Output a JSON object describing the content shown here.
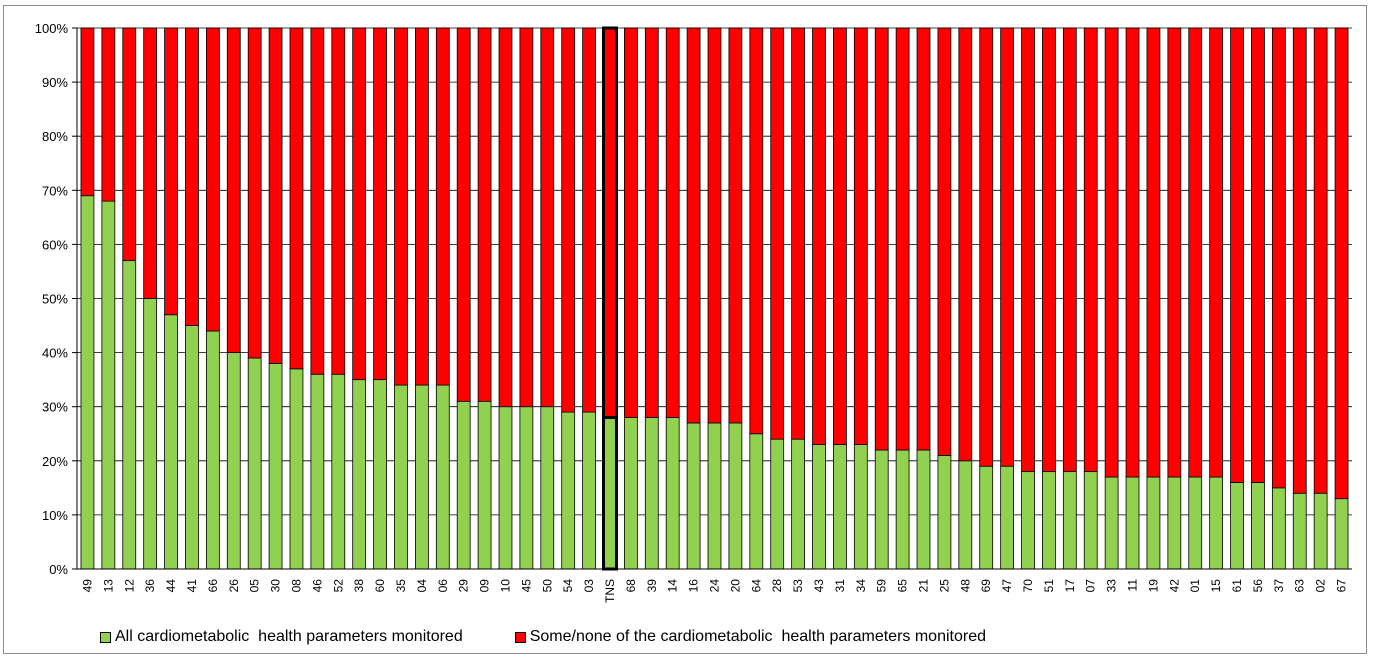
{
  "title_fragment": "",
  "chart_data": {
    "type": "bar",
    "stacked": true,
    "normalized": true,
    "ylim": [
      0,
      100
    ],
    "yticks": [
      "0%",
      "10%",
      "20%",
      "30%",
      "40%",
      "50%",
      "60%",
      "70%",
      "80%",
      "90%",
      "100%"
    ],
    "grid": true,
    "legend_position": "bottom",
    "highlighted_category": "TNS",
    "categories": [
      "49",
      "13",
      "12",
      "36",
      "44",
      "41",
      "66",
      "26",
      "05",
      "30",
      "08",
      "46",
      "52",
      "38",
      "60",
      "35",
      "04",
      "06",
      "29",
      "09",
      "10",
      "45",
      "50",
      "54",
      "03",
      "TNS",
      "68",
      "39",
      "14",
      "16",
      "24",
      "20",
      "64",
      "28",
      "53",
      "43",
      "31",
      "34",
      "59",
      "65",
      "21",
      "25",
      "48",
      "69",
      "47",
      "70",
      "51",
      "17",
      "07",
      "33",
      "11",
      "19",
      "42",
      "01",
      "15",
      "61",
      "56",
      "37",
      "63",
      "02",
      "67"
    ],
    "series": [
      {
        "name": "All cardiometabolic  health parameters monitored",
        "color": "#92d050",
        "values": [
          69,
          68,
          57,
          50,
          47,
          45,
          44,
          40,
          39,
          38,
          37,
          36,
          36,
          35,
          35,
          34,
          34,
          34,
          31,
          31,
          30,
          30,
          30,
          29,
          29,
          28,
          28,
          28,
          28,
          27,
          27,
          27,
          25,
          24,
          24,
          23,
          23,
          23,
          22,
          22,
          22,
          21,
          20,
          19,
          19,
          18,
          18,
          18,
          18,
          17,
          17,
          17,
          17,
          17,
          17,
          16,
          16,
          15,
          14,
          14,
          13
        ]
      },
      {
        "name": "Some/none of the cardiometabolic  health parameters monitored",
        "color": "#ff0000",
        "values": [
          31,
          32,
          43,
          50,
          53,
          55,
          56,
          60,
          61,
          62,
          63,
          64,
          64,
          65,
          65,
          66,
          66,
          66,
          69,
          69,
          70,
          70,
          70,
          71,
          71,
          72,
          72,
          72,
          72,
          73,
          73,
          73,
          75,
          76,
          76,
          77,
          77,
          77,
          78,
          78,
          78,
          79,
          80,
          81,
          81,
          82,
          82,
          82,
          82,
          83,
          83,
          83,
          83,
          83,
          83,
          84,
          84,
          85,
          86,
          86,
          87
        ]
      }
    ]
  }
}
